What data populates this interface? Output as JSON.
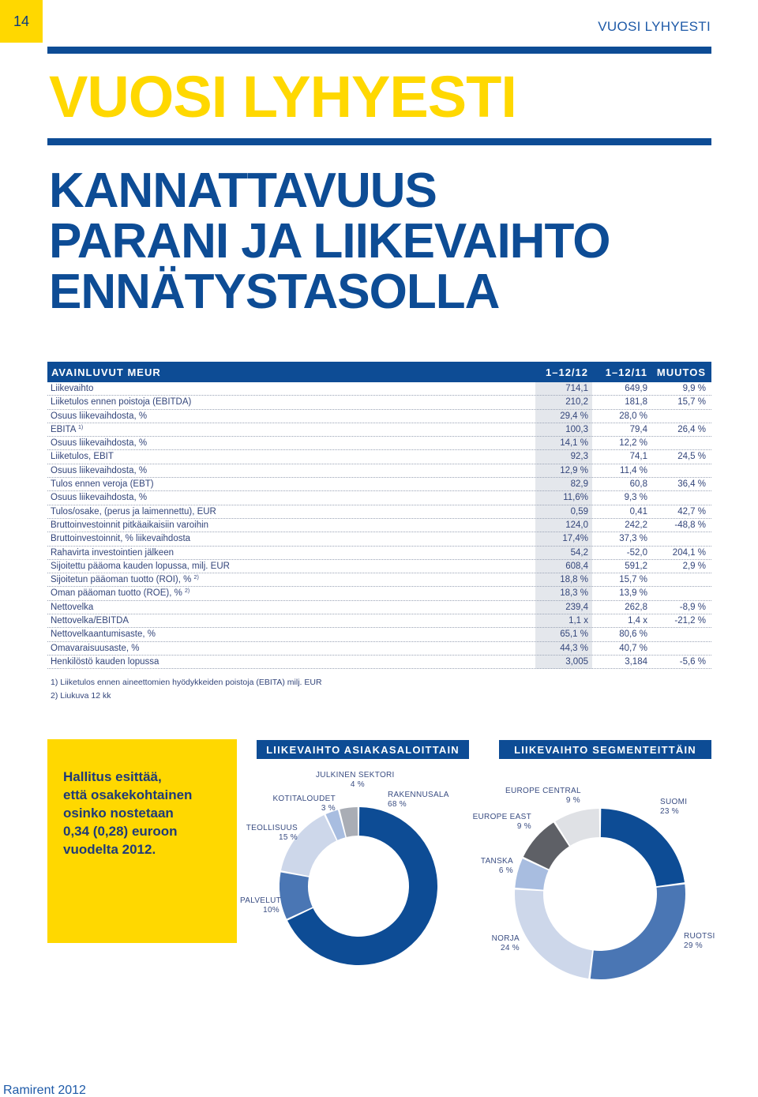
{
  "page": {
    "number": "14",
    "running_head": "VUOSI LYHYESTI",
    "footer": "Ramirent 2012"
  },
  "headings": {
    "section": "VUOSI LYHYESTI",
    "main_lines": [
      "KANNATTAVUUS",
      "PARANI JA LIIKEVAIHTO",
      "ENNÄTYSTASOLLA"
    ]
  },
  "key_figures": {
    "header": {
      "label": "AVAINLUVUT MEUR",
      "col1": "1–12/12",
      "col2": "1–12/11",
      "col3": "MUUTOS"
    },
    "rows": [
      {
        "label": "Liikevaihto",
        "sup": "",
        "v1": "714,1",
        "v2": "649,9",
        "v3": "9,9 %"
      },
      {
        "label": "Liiketulos ennen poistoja (EBITDA)",
        "sup": "",
        "v1": "210,2",
        "v2": "181,8",
        "v3": "15,7 %"
      },
      {
        "label": "Osuus liikevaihdosta, %",
        "sup": "",
        "v1": "29,4 %",
        "v2": "28,0 %",
        "v3": ""
      },
      {
        "label": "EBITA",
        "sup": "1)",
        "v1": "100,3",
        "v2": "79,4",
        "v3": "26,4 %"
      },
      {
        "label": "Osuus liikevaihdosta, %",
        "sup": "",
        "v1": "14,1 %",
        "v2": "12,2 %",
        "v3": ""
      },
      {
        "label": "Liiketulos, EBIT",
        "sup": "",
        "v1": "92,3",
        "v2": "74,1",
        "v3": "24,5 %"
      },
      {
        "label": "Osuus liikevaihdosta, %",
        "sup": "",
        "v1": "12,9 %",
        "v2": "11,4 %",
        "v3": ""
      },
      {
        "label": "Tulos ennen veroja (EBT)",
        "sup": "",
        "v1": "82,9",
        "v2": "60,8",
        "v3": "36,4 %"
      },
      {
        "label": "Osuus liikevaihdosta, %",
        "sup": "",
        "v1": "11,6%",
        "v2": "9,3 %",
        "v3": ""
      },
      {
        "label": "Tulos/osake, (perus ja laimennettu), EUR",
        "sup": "",
        "v1": "0,59",
        "v2": "0,41",
        "v3": "42,7 %"
      },
      {
        "label": "Bruttoinvestoinnit pitkäaikaisiin varoihin",
        "sup": "",
        "v1": "124,0",
        "v2": "242,2",
        "v3": "-48,8 %"
      },
      {
        "label": "Bruttoinvestoinnit, % liikevaihdosta",
        "sup": "",
        "v1": "17,4%",
        "v2": "37,3 %",
        "v3": ""
      },
      {
        "label": "Rahavirta investointien jälkeen",
        "sup": "",
        "v1": "54,2",
        "v2": "-52,0",
        "v3": "204,1 %"
      },
      {
        "label": "Sijoitettu pääoma kauden lopussa, milj. EUR",
        "sup": "",
        "v1": "608,4",
        "v2": "591,2",
        "v3": "2,9 %"
      },
      {
        "label": "Sijoitetun pääoman tuotto (ROI), %",
        "sup": "2)",
        "v1": "18,8 %",
        "v2": "15,7 %",
        "v3": ""
      },
      {
        "label": "Oman pääoman tuotto (ROE), %",
        "sup": "2)",
        "v1": "18,3 %",
        "v2": "13,9 %",
        "v3": ""
      },
      {
        "label": "Nettovelka",
        "sup": "",
        "v1": "239,4",
        "v2": "262,8",
        "v3": "-8,9 %"
      },
      {
        "label": "Nettovelka/EBITDA",
        "sup": "",
        "v1": "1,1 x",
        "v2": "1,4 x",
        "v3": "-21,2 %"
      },
      {
        "label": "Nettovelkaantumisaste, %",
        "sup": "",
        "v1": "65,1 %",
        "v2": "80,6 %",
        "v3": ""
      },
      {
        "label": "Omavaraisuusaste, %",
        "sup": "",
        "v1": "44,3 %",
        "v2": "40,7 %",
        "v3": ""
      },
      {
        "label": "Henkilöstö kauden lopussa",
        "sup": "",
        "v1": "3,005",
        "v2": "3,184",
        "v3": "-5,6 %"
      }
    ],
    "footnotes": [
      "1) Liiketulos ennen aineettomien hyödykkeiden poistoja (EBITA) milj. EUR",
      "2) Liukuva 12 kk"
    ]
  },
  "callout": {
    "lines": [
      "Hallitus esittää,",
      "että osakekohtainen",
      "osinko nostetaan",
      "0,34 (0,28) euroon",
      "vuodelta 2012."
    ]
  },
  "colors": {
    "dark_blue": "#0d4c95",
    "mid_blue": "#4a76b4",
    "light_blue": "#a8bde0",
    "pale_blue": "#cdd7ea",
    "dark_gray": "#5e6066",
    "light_gray": "#dfe1e5",
    "gray": "#a9adb5",
    "yellow": "#ffd800"
  },
  "chart_data": [
    {
      "type": "pie",
      "title": "LIIKEVAIHTO ASIAKASALOITTAIN",
      "categories": [
        "RAKENNUSALA",
        "PALVELUT",
        "TEOLLISUUS",
        "KOTITALOUDET",
        "JULKINEN SEKTORI"
      ],
      "values": [
        68,
        10,
        15,
        3,
        4
      ],
      "value_labels": [
        "68 %",
        "10%",
        "15 %",
        "3 %",
        "4 %"
      ],
      "colors": [
        "#0d4c95",
        "#4a76b4",
        "#cdd7ea",
        "#a8bde0",
        "#a9adb5"
      ]
    },
    {
      "type": "pie",
      "title": "LIIKEVAIHTO SEGMENTEITTÄIN",
      "categories": [
        "SUOMI",
        "RUOTSI",
        "NORJA",
        "TANSKA",
        "EUROPE EAST",
        "EUROPE CENTRAL"
      ],
      "values": [
        23,
        29,
        24,
        6,
        9,
        9
      ],
      "value_labels": [
        "23 %",
        "29 %",
        "24 %",
        "6 %",
        "9 %",
        "9 %"
      ],
      "colors": [
        "#0d4c95",
        "#4a76b4",
        "#cdd7ea",
        "#a8bde0",
        "#5e6066",
        "#dfe1e5"
      ]
    }
  ]
}
